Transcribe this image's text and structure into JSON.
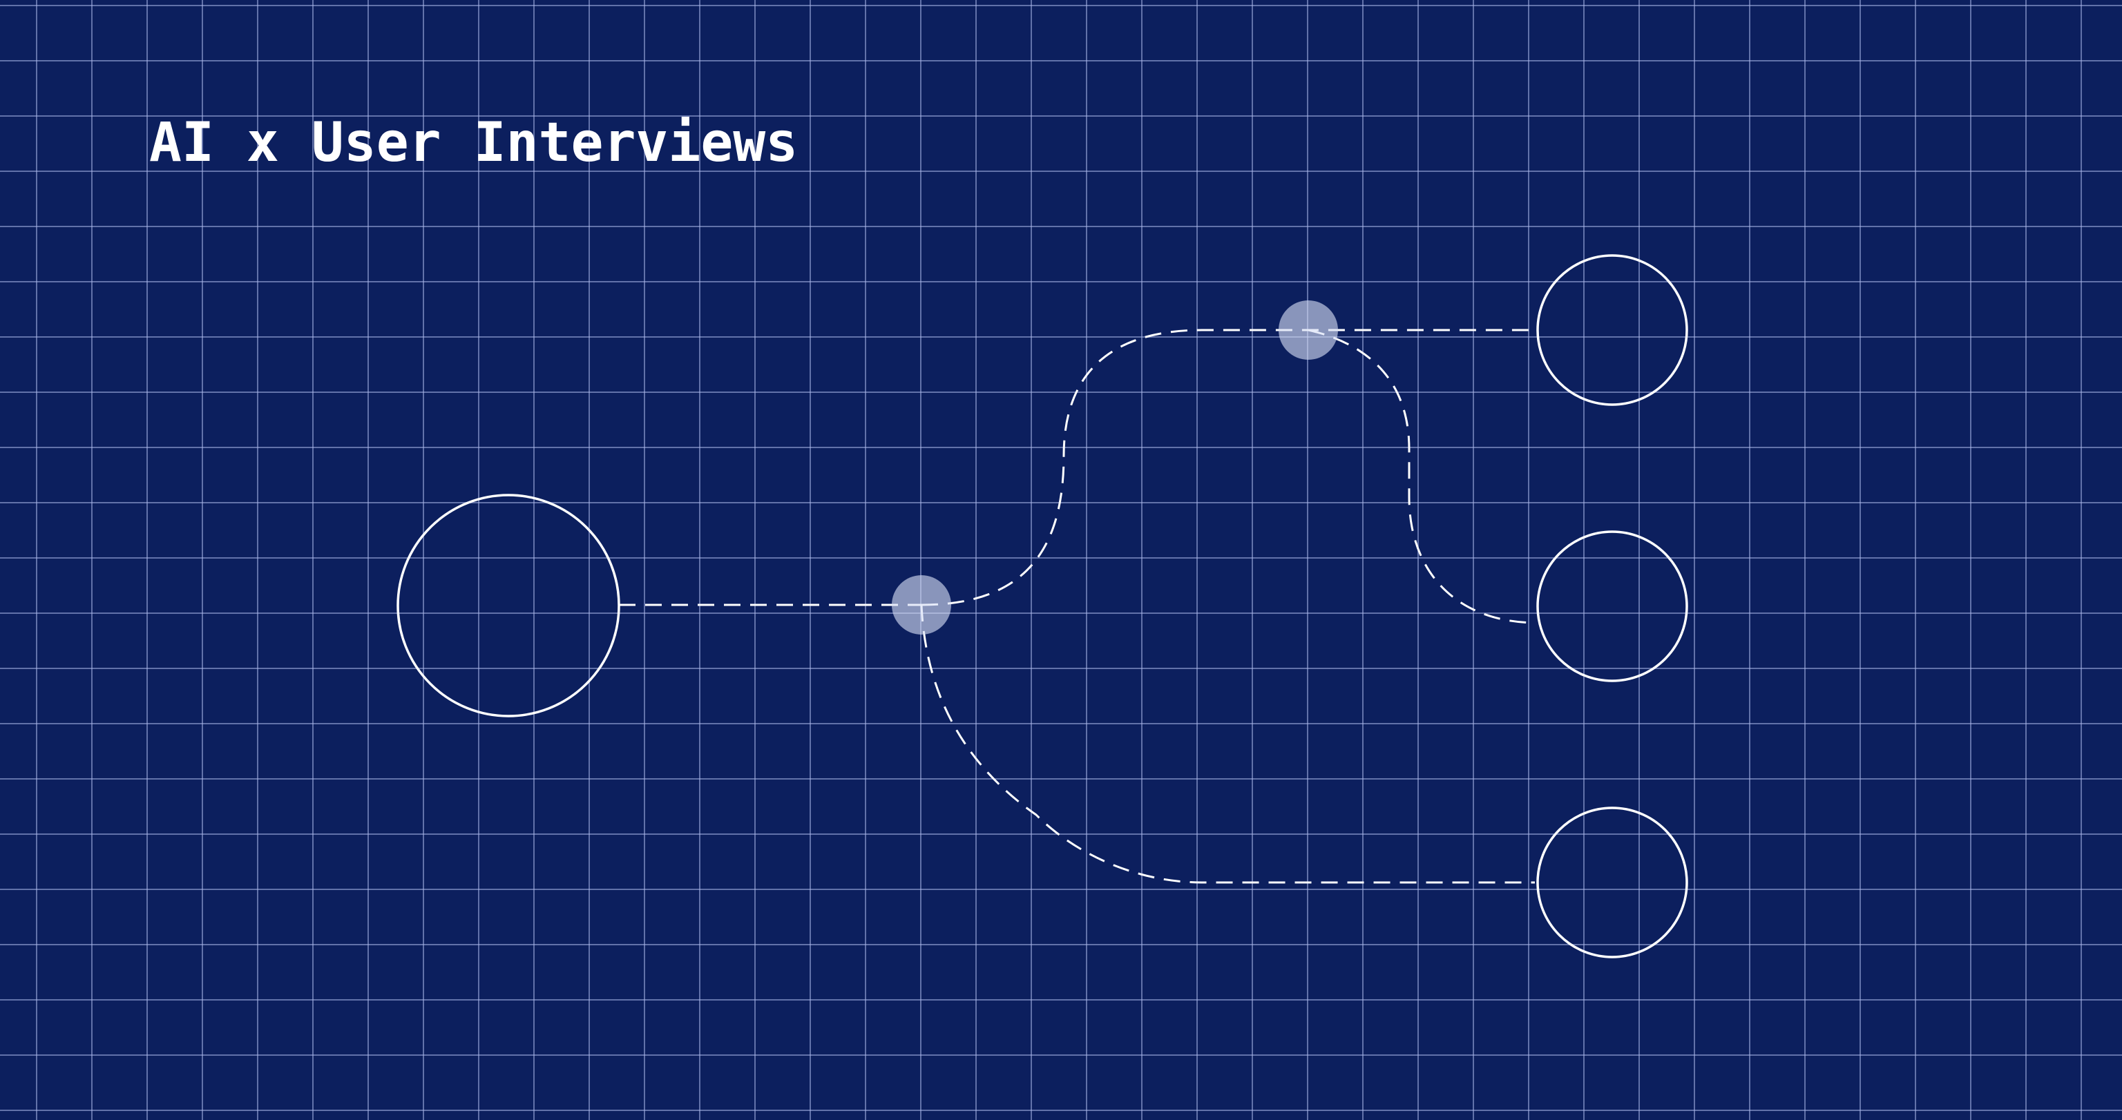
{
  "page": {
    "title": "AI x User Interviews"
  },
  "theme": {
    "background": "#0c1f5e",
    "grid_line": "#aab6e8",
    "stroke": "#ffffff",
    "junction_fill": "#d7def5"
  },
  "diagram": {
    "nodes": [
      "source-node",
      "output-node-top",
      "output-node-middle",
      "output-node-bottom"
    ],
    "junctions": [
      "junction-primary",
      "junction-secondary"
    ]
  }
}
